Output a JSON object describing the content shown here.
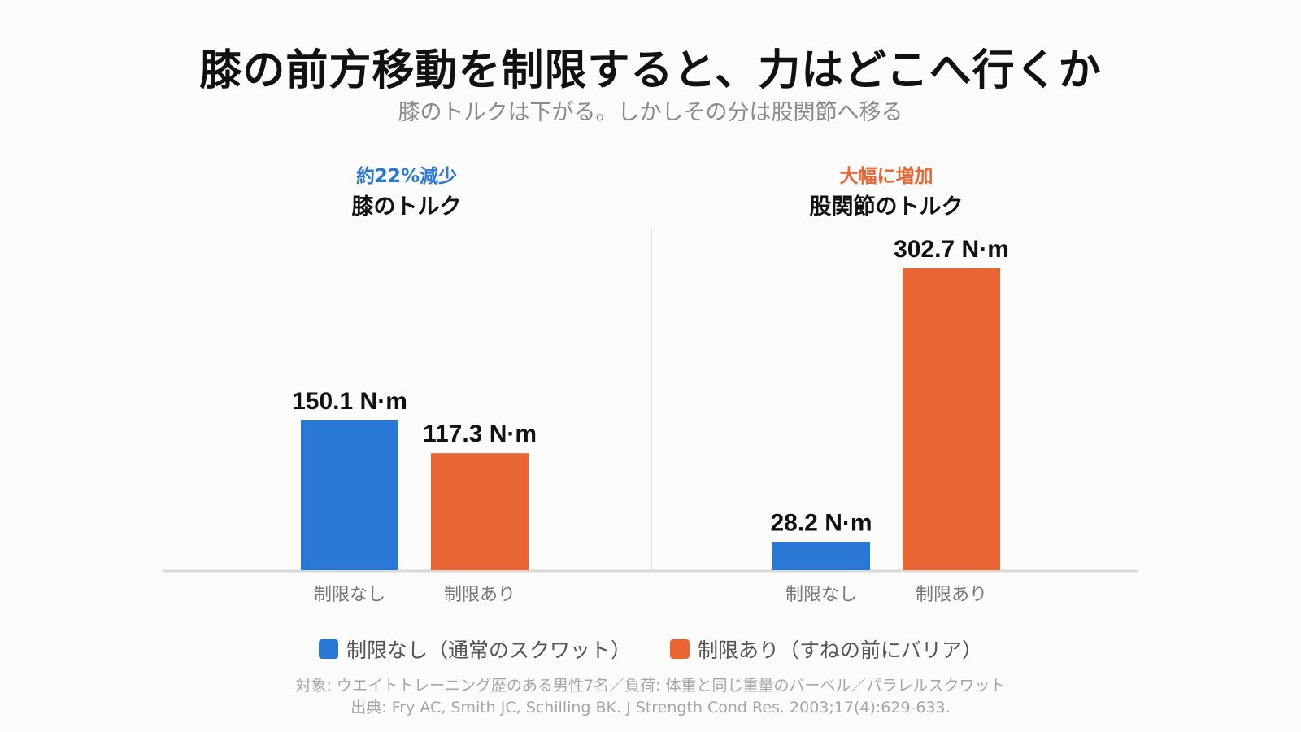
{
  "title": "膝の前方移動を制限すると、力はどこへ行くか",
  "subtitle": "膝のトルクは下がる。しかしその分は股関節へ移る",
  "colors": {
    "no_restriction": "#2a78d6",
    "restriction": "#e96634",
    "baseline": "#d9d9d9",
    "divider": "#e2e2e2"
  },
  "chart_data": [
    {
      "type": "bar",
      "title": "膝のトルク",
      "note": "約22%減少",
      "note_color": "#2a78d6",
      "categories": [
        "制限なし",
        "制限あり"
      ],
      "values": [
        150.1,
        117.3
      ],
      "value_labels": [
        "150.1 N·m",
        "117.3 N·m"
      ],
      "ylim": [
        0,
        310
      ]
    },
    {
      "type": "bar",
      "title": "股関節のトルク",
      "note": "大幅に増加",
      "note_color": "#e96634",
      "categories": [
        "制限なし",
        "制限あり"
      ],
      "values": [
        28.2,
        302.7
      ],
      "value_labels": [
        "28.2 N·m",
        "302.7 N·m"
      ],
      "ylim": [
        0,
        310
      ]
    }
  ],
  "legend": {
    "no_restriction": "制限なし（通常のスクワット）",
    "restriction": "制限あり（すねの前にバリア）"
  },
  "footnote": {
    "subjects": "対象: ウエイトトレーニング歴のある男性7名／負荷: 体重と同じ重量のバーベル／パラレルスクワット",
    "source": "出典: Fry AC, Smith JC, Schilling BK. J Strength Cond Res. 2003;17(4):629-633."
  }
}
